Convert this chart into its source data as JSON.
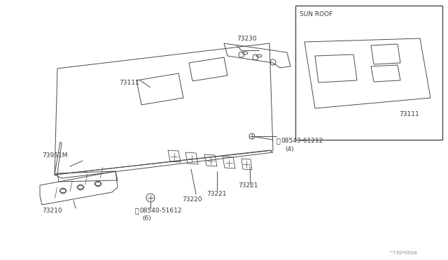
{
  "background_color": "#ffffff",
  "line_color": "#4a4a4a",
  "text_color": "#3a3a3a",
  "sun_roof_label": "SUN ROOF",
  "footer_text": "^730*0004"
}
